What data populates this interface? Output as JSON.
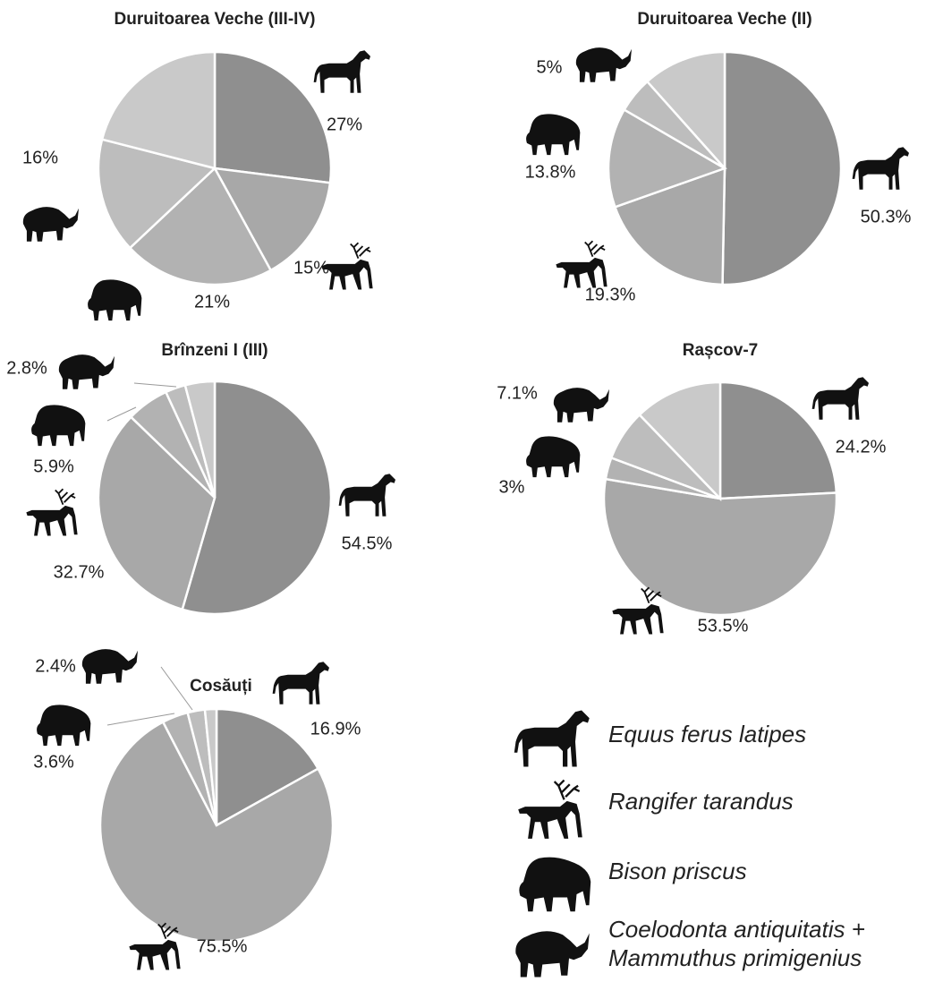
{
  "chart_data": [
    {
      "type": "pie",
      "title": "Duruitoarea Veche (III-IV)",
      "values": [
        27,
        15,
        21,
        16,
        21
      ],
      "value_labels": [
        "27%",
        "15%",
        "21%",
        "16%",
        null
      ],
      "colors": [
        "#8f8f8f",
        "#a8a8a8",
        "#b2b2b2",
        "#bdbdbd",
        "#c9c9c9"
      ]
    },
    {
      "type": "pie",
      "title": "Duruitoarea Veche (II)",
      "values": [
        50.3,
        19.3,
        13.8,
        5,
        11.6
      ],
      "value_labels": [
        "50.3%",
        "19.3%",
        "13.8%",
        "5%",
        null
      ],
      "colors": [
        "#8f8f8f",
        "#a8a8a8",
        "#b2b2b2",
        "#bdbdbd",
        "#c9c9c9"
      ]
    },
    {
      "type": "pie",
      "title": "Brînzeni I (III)",
      "values": [
        54.5,
        32.7,
        5.9,
        2.8,
        4.1
      ],
      "value_labels": [
        "54.5%",
        "32.7%",
        "5.9%",
        "2.8%",
        null
      ],
      "colors": [
        "#8f8f8f",
        "#a8a8a8",
        "#b2b2b2",
        "#bdbdbd",
        "#c9c9c9"
      ]
    },
    {
      "type": "pie",
      "title": "Rașcov-7",
      "values": [
        24.2,
        53.5,
        3,
        7.1,
        12.2
      ],
      "value_labels": [
        "24.2%",
        "53.5%",
        "3%",
        "7.1%",
        null
      ],
      "colors": [
        "#8f8f8f",
        "#a8a8a8",
        "#b2b2b2",
        "#bdbdbd",
        "#c9c9c9"
      ]
    },
    {
      "type": "pie",
      "title": "Cosăuți",
      "values": [
        16.9,
        75.5,
        3.6,
        2.4,
        1.6
      ],
      "value_labels": [
        "16.9%",
        "75.5%",
        "3.6%",
        "2.4%",
        null
      ],
      "colors": [
        "#8f8f8f",
        "#a8a8a8",
        "#b2b2b2",
        "#bdbdbd",
        "#c9c9c9"
      ]
    }
  ],
  "legend": {
    "entries": [
      [
        "Equus ferus latipes"
      ],
      [
        "Rangifer tarandus"
      ],
      [
        "Bison priscus"
      ],
      [
        "Coelodonta antiquitatis +",
        "Mammuthus primigenius"
      ]
    ]
  }
}
